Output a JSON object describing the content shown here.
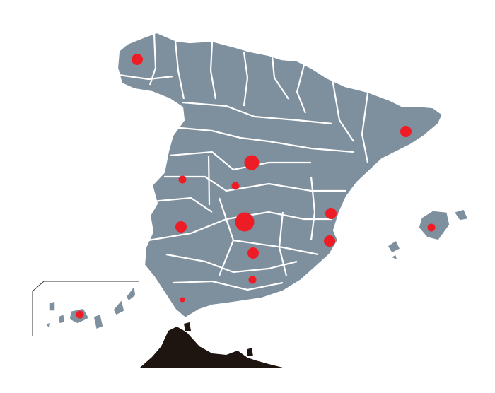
{
  "map": {
    "land_color": "#7e8f9e",
    "border_color": "#ffffff",
    "africa_color": "#1f1510",
    "marker_color": "#ee1c25",
    "markers": [
      {
        "id": "a-coruna",
        "size": "medium"
      },
      {
        "id": "barcelona",
        "size": "medium"
      },
      {
        "id": "valladolid",
        "size": "large"
      },
      {
        "id": "salamanca",
        "size": "small"
      },
      {
        "id": "avila",
        "size": "small"
      },
      {
        "id": "madrid",
        "size": "xlarge"
      },
      {
        "id": "valencia",
        "size": "medium"
      },
      {
        "id": "caceres",
        "size": "medium"
      },
      {
        "id": "alicante",
        "size": "medium"
      },
      {
        "id": "mallorca",
        "size": "small"
      },
      {
        "id": "cordoba",
        "size": "medium"
      },
      {
        "id": "granada",
        "size": "small"
      },
      {
        "id": "cadiz",
        "size": "tiny"
      },
      {
        "id": "canarias",
        "size": "small"
      }
    ]
  }
}
